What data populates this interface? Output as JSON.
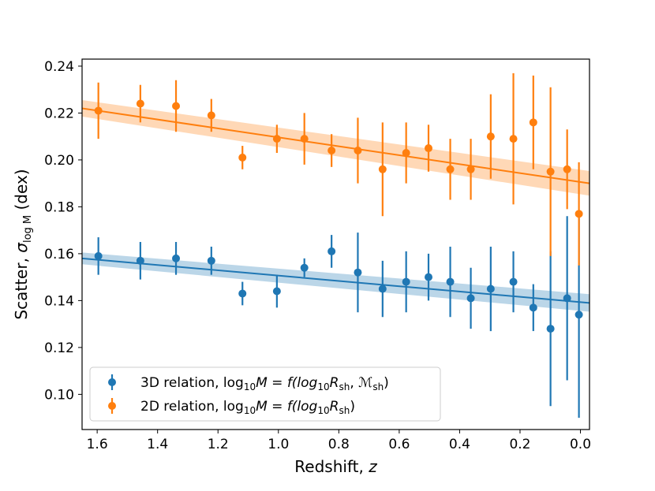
{
  "chart_data": {
    "type": "scatter",
    "xlabel_main": "Redshift, ",
    "xlabel_var": "z",
    "ylabel_main": "Scatter, ",
    "ylabel_sigma": "σ",
    "ylabel_sub": "log M",
    "ylabel_unit": " (dex)",
    "xlim": [
      1.65,
      -0.03
    ],
    "ylim": [
      0.085,
      0.243
    ],
    "x_reversed": true,
    "grid": false,
    "legend_position": "lower-left",
    "xticks": [
      1.6,
      1.4,
      1.2,
      1.0,
      0.8,
      0.6,
      0.4,
      0.2,
      0.0
    ],
    "xtick_labels": [
      "1.6",
      "1.4",
      "1.2",
      "1.0",
      "0.8",
      "0.6",
      "0.4",
      "0.2",
      "0.0"
    ],
    "yticks": [
      0.1,
      0.12,
      0.14,
      0.16,
      0.18,
      0.2,
      0.22,
      0.24
    ],
    "ytick_labels": [
      "0.10",
      "0.12",
      "0.14",
      "0.16",
      "0.18",
      "0.20",
      "0.22",
      "0.24"
    ],
    "series": [
      {
        "key": "3d",
        "color": "#1f77b4",
        "legend_parts": [
          "3D relation, log",
          "10",
          "M = f(log",
          "10",
          "R",
          "sh",
          ", ",
          "ℳ",
          "sh",
          ")"
        ],
        "x": [
          1.596,
          1.457,
          1.339,
          1.222,
          1.119,
          1.005,
          0.914,
          0.824,
          0.737,
          0.655,
          0.577,
          0.503,
          0.431,
          0.363,
          0.297,
          0.222,
          0.156,
          0.099,
          0.044,
          0.005
        ],
        "y": [
          0.159,
          0.157,
          0.158,
          0.157,
          0.143,
          0.144,
          0.154,
          0.161,
          0.152,
          0.145,
          0.148,
          0.15,
          0.148,
          0.141,
          0.145,
          0.148,
          0.137,
          0.128,
          0.141,
          0.134
        ],
        "err": [
          0.008,
          0.008,
          0.007,
          0.006,
          0.005,
          0.007,
          0.004,
          0.007,
          0.017,
          0.012,
          0.013,
          0.01,
          0.015,
          0.013,
          0.018,
          0.013,
          0.01,
          0.033,
          0.035,
          0.044
        ],
        "fit": {
          "x": [
            1.65,
            -0.03
          ],
          "y": [
            0.158,
            0.139
          ],
          "band": 0.0025
        }
      },
      {
        "key": "2d",
        "color": "#ff7f0e",
        "legend_parts": [
          "2D relation, log",
          "10",
          "M = f(log",
          "10",
          "R",
          "sh",
          ")"
        ],
        "x": [
          1.596,
          1.457,
          1.339,
          1.222,
          1.119,
          1.005,
          0.914,
          0.824,
          0.737,
          0.655,
          0.577,
          0.503,
          0.431,
          0.363,
          0.297,
          0.222,
          0.156,
          0.099,
          0.044,
          0.005
        ],
        "y": [
          0.221,
          0.224,
          0.223,
          0.219,
          0.201,
          0.209,
          0.209,
          0.204,
          0.204,
          0.196,
          0.203,
          0.205,
          0.196,
          0.196,
          0.21,
          0.209,
          0.216,
          0.195,
          0.196,
          0.177
        ],
        "err": [
          0.012,
          0.008,
          0.011,
          0.007,
          0.005,
          0.006,
          0.011,
          0.007,
          0.014,
          0.02,
          0.013,
          0.01,
          0.013,
          0.013,
          0.018,
          0.028,
          0.02,
          0.036,
          0.017,
          0.022
        ],
        "fit": {
          "x": [
            1.65,
            -0.03
          ],
          "y": [
            0.222,
            0.19
          ],
          "band": 0.0035
        }
      }
    ]
  }
}
